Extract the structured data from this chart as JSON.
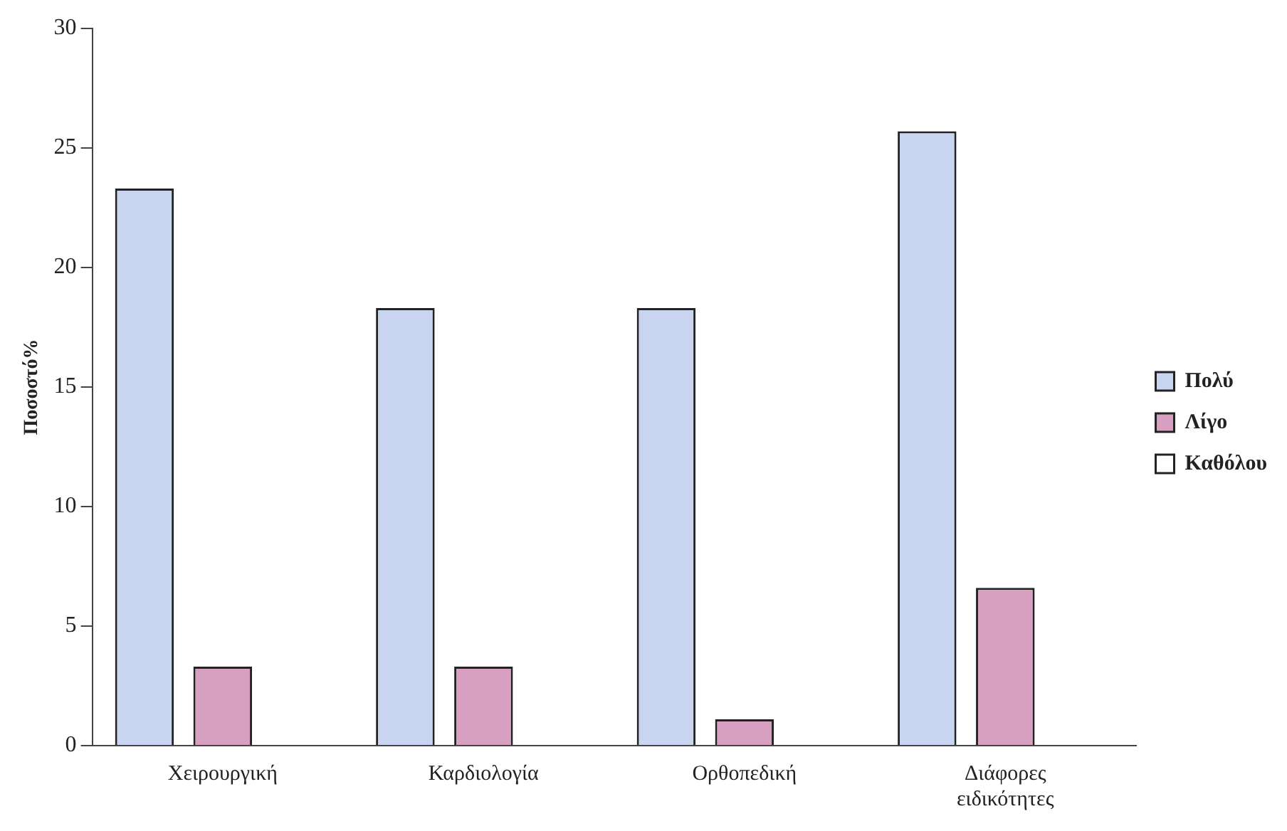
{
  "chart_data": {
    "type": "bar",
    "ylabel": "Ποσοστό%",
    "categories": [
      "Χειρουργική",
      "Καρδιολογία",
      "Ορθοπεδική",
      "Διάφορες ειδικότητες"
    ],
    "series": [
      {
        "name": "Πολύ",
        "color": "#c8d4f0",
        "values": [
          23.3,
          18.3,
          18.3,
          25.7
        ]
      },
      {
        "name": "Λίγο",
        "color": "#d8a0c0",
        "values": [
          3.3,
          3.3,
          1.1,
          6.6
        ]
      },
      {
        "name": "Καθόλου",
        "color": "#ffffff",
        "values": [
          0,
          0,
          0,
          0
        ]
      }
    ],
    "ylim": [
      0,
      30
    ],
    "yticks": [
      0,
      5,
      10,
      15,
      20,
      25,
      30
    ],
    "grid": false,
    "legend": "right"
  }
}
